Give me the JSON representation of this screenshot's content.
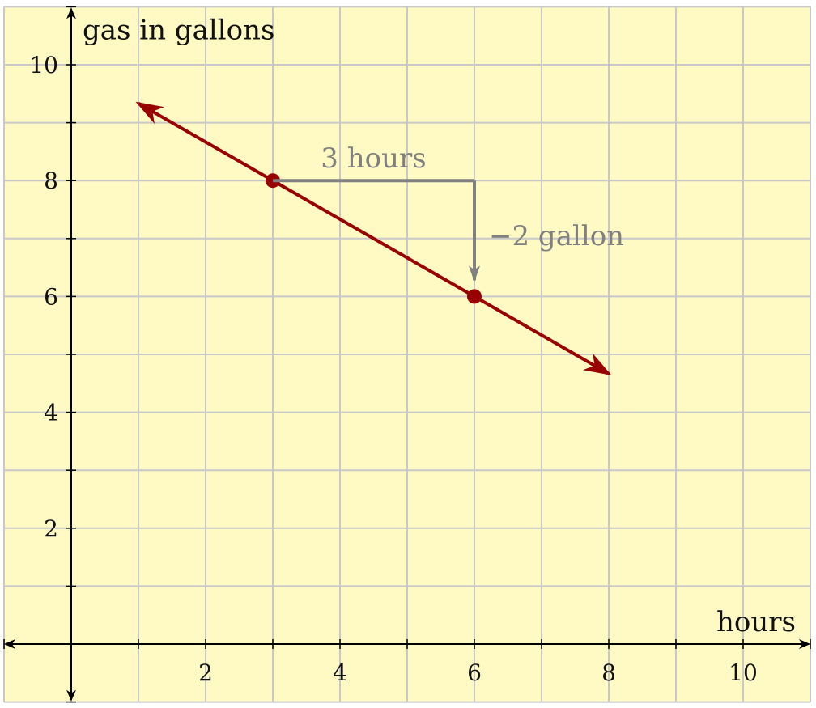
{
  "chart_data": {
    "type": "line",
    "xlabel": "hours",
    "ylabel": "gas in gallons",
    "xlim": [
      -1,
      11
    ],
    "ylim": [
      -1,
      11
    ],
    "x_ticks": [
      2,
      4,
      6,
      8,
      10
    ],
    "y_ticks": [
      2,
      4,
      6,
      8,
      10
    ],
    "grid": true,
    "series": [
      {
        "x": [
          1,
          8
        ],
        "y": [
          9.333,
          4.667
        ],
        "points": [
          {
            "x": 3,
            "y": 8
          },
          {
            "x": 6,
            "y": 6
          }
        ]
      }
    ],
    "annotations": [
      {
        "text": "3 hours",
        "kind": "run",
        "from": [
          3,
          8
        ],
        "to": [
          6,
          8
        ]
      },
      {
        "text": "−2 gallon",
        "kind": "rise",
        "from": [
          6,
          8
        ],
        "to": [
          6,
          6
        ]
      }
    ],
    "colors": {
      "background": "#FFF9C4",
      "grid": "#C8C8C8",
      "line": "#990000",
      "annotation": "#808080",
      "axis": "#000000"
    }
  }
}
